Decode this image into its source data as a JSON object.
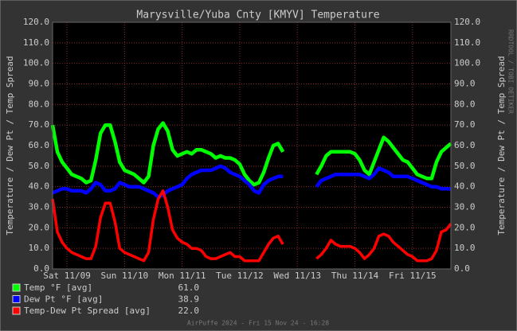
{
  "chart_data": {
    "type": "line",
    "title": "Marysville/Yuba Cnty [KMYV] Temperature",
    "y_label": "Temperature / Dew Pt / Temp Spread",
    "y2_label": "Temperature / Dew Pt / Temp Spread",
    "side_note": "RRDTOOL / TOBI OETIKER",
    "footer": "AirPuffe 2024 - Fri 15 Nov 24 - 16:28",
    "grid": true,
    "categories": [
      null,
      null,
      null,
      "Sat 11/09",
      null,
      null,
      null,
      null,
      null,
      null,
      null,
      null,
      null,
      null,
      null,
      "Sun 11/10",
      null,
      null,
      null,
      null,
      null,
      null,
      null,
      null,
      null,
      null,
      null,
      "Mon 11/11",
      null,
      null,
      null,
      null,
      null,
      null,
      null,
      null,
      null,
      null,
      null,
      "Tue 11/12",
      null,
      null,
      null,
      null,
      null,
      null,
      null,
      null,
      null,
      null,
      null,
      "Wed 11/13",
      null,
      null,
      null,
      null,
      null,
      null,
      null,
      null,
      null,
      null,
      null,
      "Thu 11/14",
      null,
      null,
      null,
      null,
      null,
      null,
      null,
      null,
      null,
      null,
      null,
      "Fri 11/15",
      null,
      null,
      null,
      null,
      null,
      null,
      null,
      null
    ],
    "ylim": [
      0,
      120
    ],
    "yticks": [
      {
        "value": 0,
        "label": "0.0"
      },
      {
        "value": 10,
        "label": "10.0"
      },
      {
        "value": 20,
        "label": "20.0"
      },
      {
        "value": 30,
        "label": "30.0"
      },
      {
        "value": 40,
        "label": "40.0"
      },
      {
        "value": 50,
        "label": "50.0"
      },
      {
        "value": 60,
        "label": "60.0"
      },
      {
        "value": 70,
        "label": "70.0"
      },
      {
        "value": 80,
        "label": "80.0"
      },
      {
        "value": 90,
        "label": "90.0"
      },
      {
        "value": 100,
        "label": "100.0"
      },
      {
        "value": 110,
        "label": "110.0"
      },
      {
        "value": 120,
        "label": "120.0"
      }
    ],
    "series": [
      {
        "name": "Temp °F [avg]",
        "color": "#00ff00",
        "legend_value": "61.0",
        "values": [
          70,
          57,
          52,
          49,
          46,
          45,
          44,
          42,
          43,
          53,
          66,
          70,
          70,
          62,
          52,
          48,
          47,
          46,
          44,
          42,
          45,
          60,
          68,
          71,
          67,
          58,
          55,
          56,
          57,
          56,
          58,
          58,
          57,
          56,
          54,
          55,
          54,
          54,
          53,
          51,
          46,
          43,
          41,
          42,
          47,
          54,
          60,
          61,
          57,
          null,
          null,
          null,
          null,
          null,
          null,
          46,
          50,
          55,
          57,
          57,
          57,
          57,
          57,
          56,
          53,
          48,
          46,
          52,
          58,
          64,
          62,
          59,
          56,
          53,
          52,
          49,
          46,
          45,
          44,
          44,
          52,
          57,
          59,
          61
        ]
      },
      {
        "name": "Dew Pt °F [avg]",
        "color": "#0000ff",
        "legend_value": "38.9",
        "values": [
          37,
          38,
          39,
          39,
          38,
          38,
          38,
          37,
          39,
          42,
          41,
          38,
          38,
          39,
          42,
          41,
          40,
          40,
          40,
          39,
          38,
          37,
          35,
          36,
          38,
          39,
          40,
          41,
          44,
          46,
          47,
          48,
          48,
          48,
          49,
          50,
          49,
          47,
          46,
          45,
          43,
          41,
          38,
          37,
          41,
          43,
          44,
          45,
          45,
          null,
          null,
          null,
          null,
          null,
          null,
          40,
          43,
          44,
          45,
          46,
          46,
          46,
          46,
          46,
          46,
          45,
          44,
          46,
          49,
          48,
          47,
          45,
          45,
          45,
          45,
          44,
          43,
          42,
          41,
          40,
          40,
          39,
          39,
          38.9
        ]
      },
      {
        "name": "Temp-Dew Pt Spread [avg]",
        "color": "#ff0000",
        "legend_value": "22.0",
        "values": [
          34,
          18,
          13,
          10,
          8,
          7,
          6,
          5,
          5,
          11,
          25,
          32,
          32,
          23,
          10,
          8,
          7,
          6,
          5,
          4,
          8,
          24,
          34,
          38,
          30,
          19,
          15,
          13,
          12,
          10,
          10,
          9,
          6,
          5,
          5,
          6,
          7,
          8,
          6,
          6,
          4,
          4,
          4,
          4,
          8,
          12,
          15,
          16,
          12,
          null,
          null,
          null,
          null,
          null,
          null,
          5,
          7,
          10,
          14,
          12,
          11,
          11,
          11,
          10,
          8,
          5,
          7,
          10,
          16,
          17,
          16,
          13,
          11,
          9,
          7,
          6,
          4,
          4,
          4,
          5,
          9,
          18,
          19,
          22
        ]
      }
    ]
  }
}
